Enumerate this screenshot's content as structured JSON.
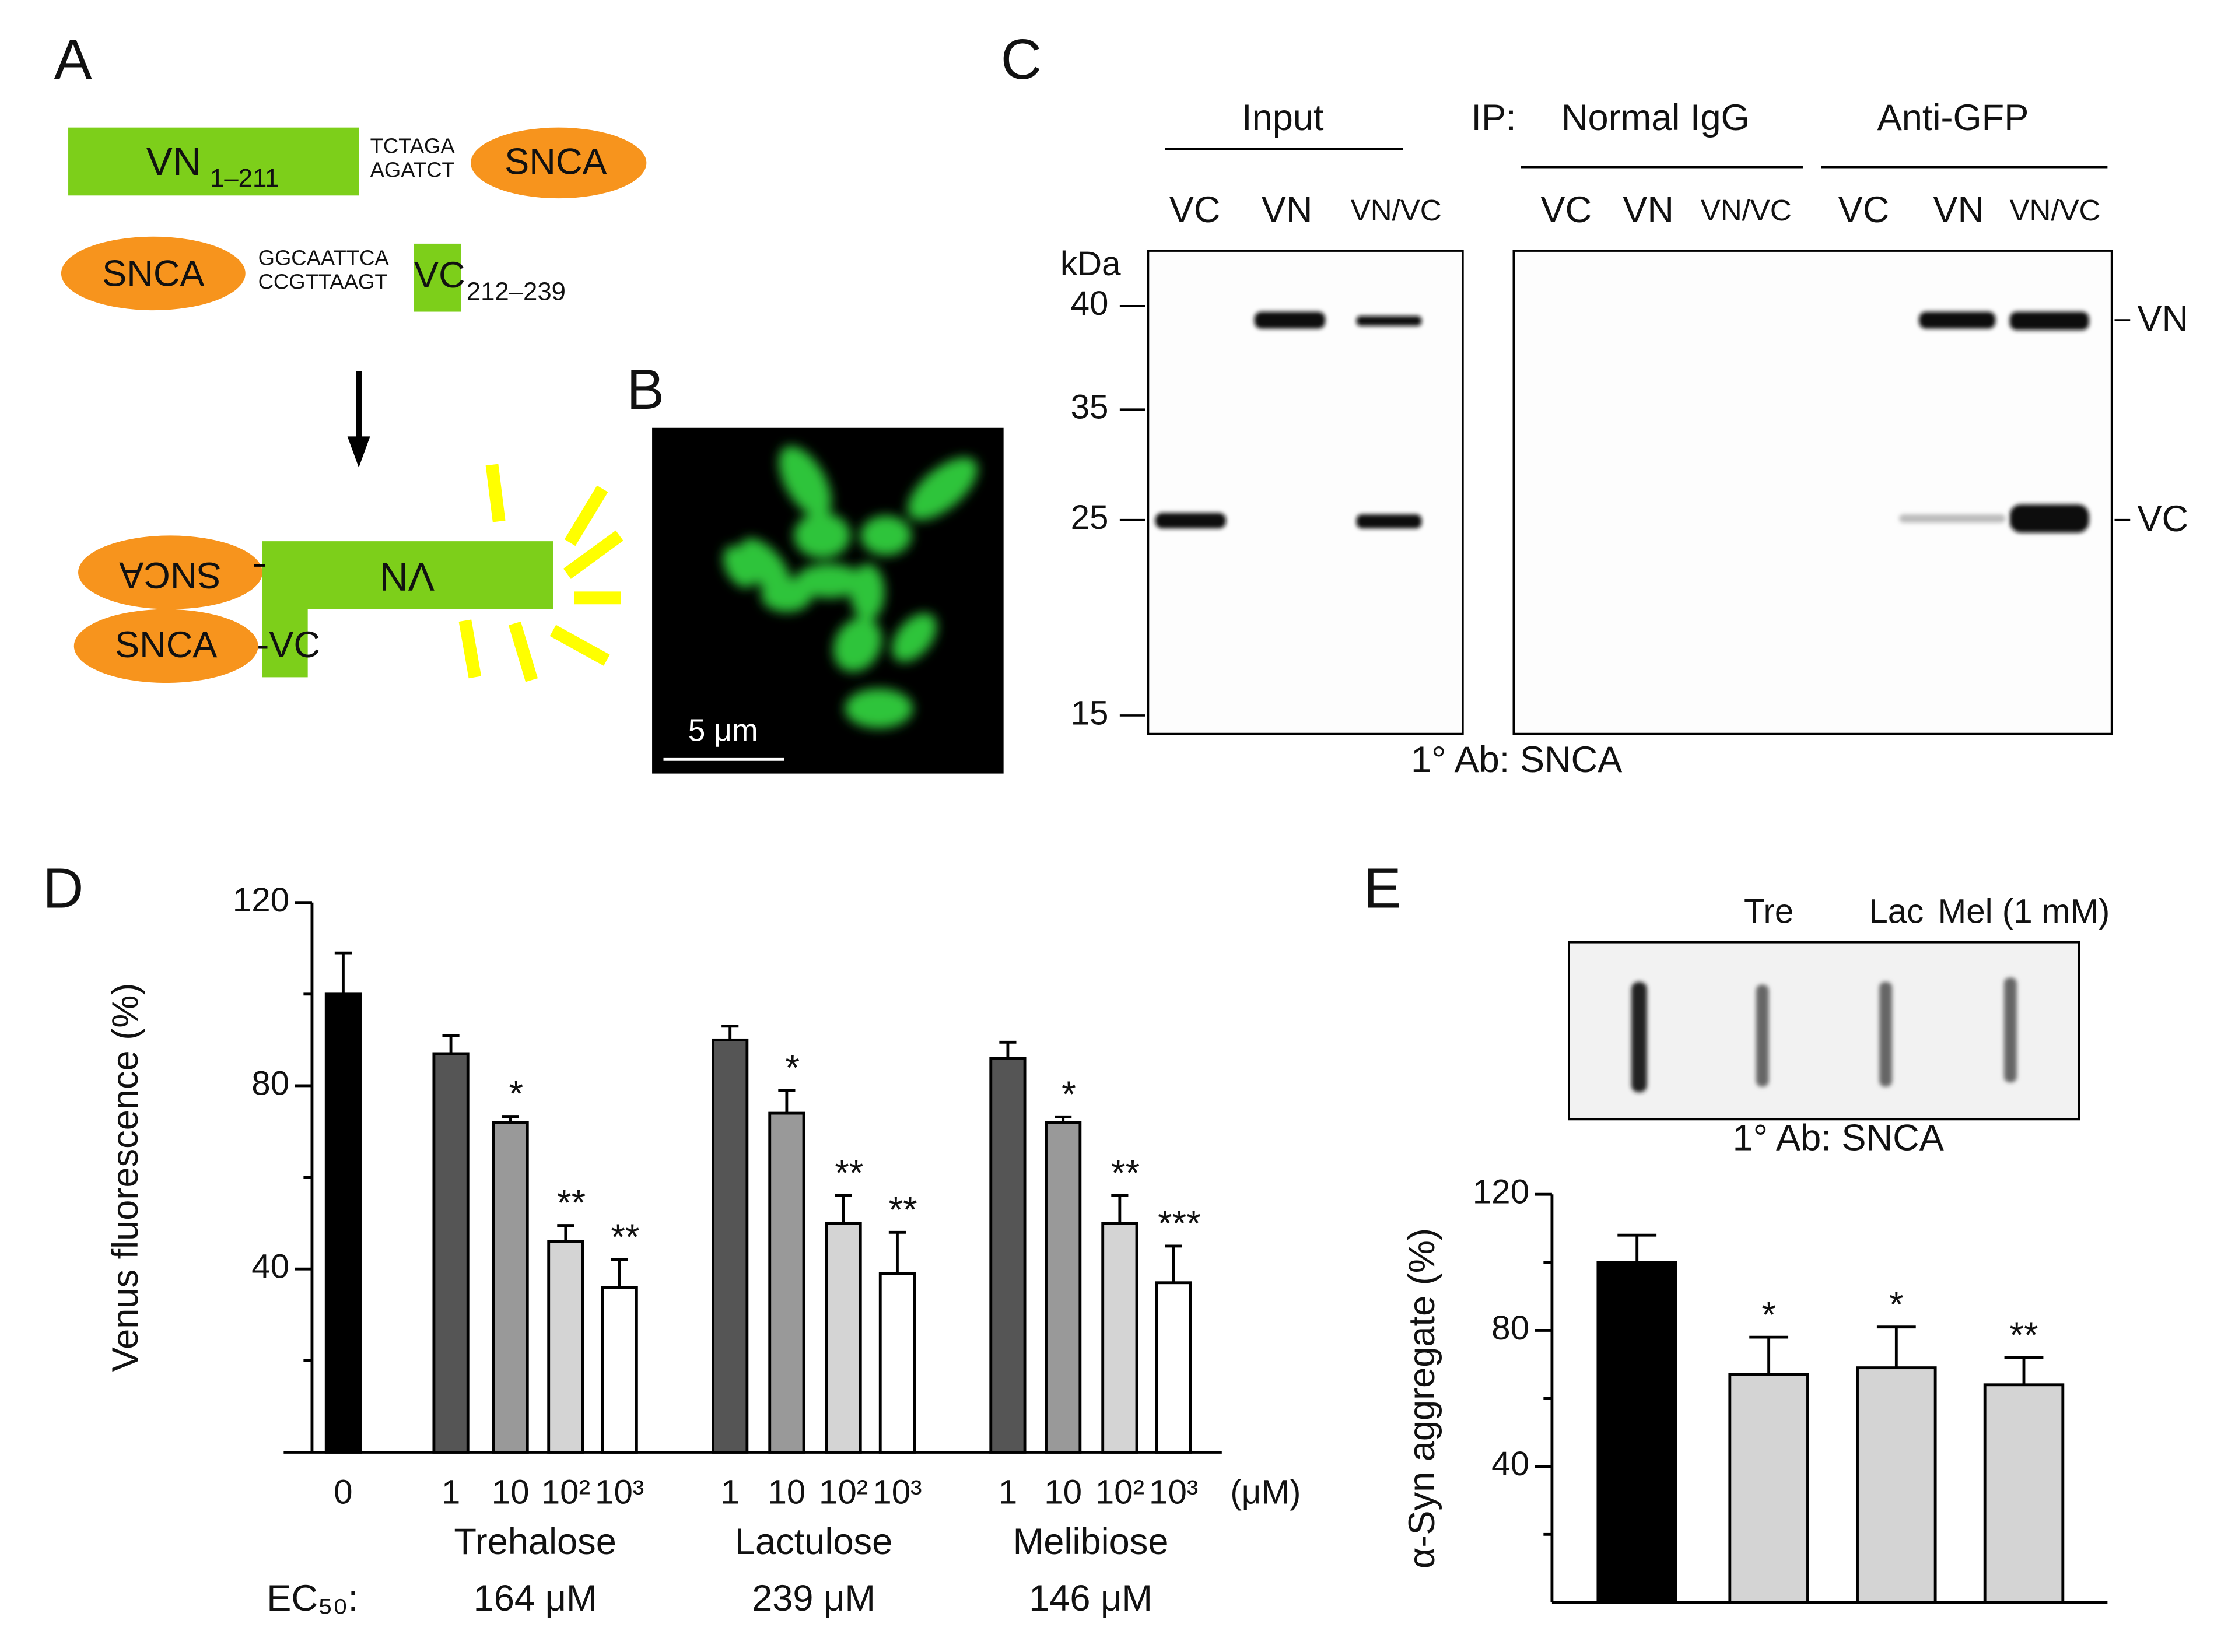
{
  "panel_labels": [
    "A",
    "B",
    "C",
    "D",
    "E"
  ],
  "panel_a": {
    "top_construct": {
      "vn": "VN",
      "vn_range": "1–211",
      "seq_top": "TCTAGA",
      "seq_bottom": "AGATCT",
      "snca": "SNCA"
    },
    "bottom_construct": {
      "snca": "SNCA",
      "seq_top": "GGCAATTCA",
      "seq_bottom": "CCGTTAAGT",
      "vc": "VC",
      "vc_range": "212–239"
    },
    "complex": {
      "snca_top": "SNCA",
      "vn": "VN",
      "snca_bottom": "SNCA",
      "vc": "-VC"
    }
  },
  "panel_b": {
    "scale_bar": "5 μm"
  },
  "panel_c": {
    "headers": {
      "input": "Input",
      "ip": "IP:",
      "normal_igg": "Normal IgG",
      "anti_gfp": "Anti-GFP"
    },
    "lanes": [
      "VC",
      "VN",
      "VN/VC",
      "VC",
      "VN",
      "VN/VC",
      "VC",
      "VN",
      "VN/VC"
    ],
    "mw_unit": "kDa",
    "mw_markers": [
      40,
      35,
      25,
      15
    ],
    "band_labels": [
      "VN",
      "VC"
    ],
    "antibody": "1° Ab: SNCA"
  },
  "panel_e": {
    "antibody": "1° Ab: SNCA"
  },
  "chart_data": [
    {
      "type": "bar",
      "y_label": "Venus fluorescence (%)",
      "categories": [
        "0",
        "1",
        "10",
        "10²",
        "10³",
        "1",
        "10",
        "10²",
        "10³",
        "1",
        "10",
        "10²",
        "10³"
      ],
      "values": [
        100,
        87,
        72,
        46,
        36,
        90,
        74,
        50,
        39,
        86,
        72,
        50,
        37
      ],
      "errors": [
        9,
        4,
        1.3,
        3.5,
        6,
        3,
        5,
        6,
        9,
        3.5,
        1.2,
        6,
        8
      ],
      "colors": [
        "#000000",
        "#555555",
        "#999999",
        "#d4d4d4",
        "#ffffff",
        "#555555",
        "#999999",
        "#d4d4d4",
        "#ffffff",
        "#555555",
        "#999999",
        "#d4d4d4",
        "#ffffff"
      ],
      "significance": [
        null,
        null,
        "*",
        "**",
        "**",
        null,
        "*",
        "**",
        "**",
        null,
        "*",
        "**",
        "***"
      ],
      "x_unit": "(μM)",
      "groups": [
        {
          "name": "Trehalose",
          "ec50": "164 μM"
        },
        {
          "name": "Lactulose",
          "ec50": "239 μM"
        },
        {
          "name": "Melibiose",
          "ec50": "146 μM"
        }
      ],
      "ec50_label": "EC₅₀:",
      "ylim": [
        0,
        120
      ],
      "yticks": [
        40,
        80,
        120
      ],
      "minor_yticks": [
        20,
        60,
        100
      ]
    },
    {
      "type": "bar",
      "y_label": "α-Syn aggregate (%)",
      "categories": [
        null,
        "Tre",
        "Lac",
        "Mel (1 mM)"
      ],
      "values": [
        100,
        67,
        69,
        64
      ],
      "errors": [
        8,
        11,
        12,
        8
      ],
      "colors": [
        "#000000",
        "#d4d4d4",
        "#d4d4d4",
        "#d4d4d4"
      ],
      "significance": [
        null,
        "*",
        "*",
        "**"
      ],
      "ylim": [
        0,
        120
      ],
      "yticks": [
        40,
        80,
        120
      ],
      "minor_yticks": [
        20,
        60,
        100
      ]
    }
  ]
}
